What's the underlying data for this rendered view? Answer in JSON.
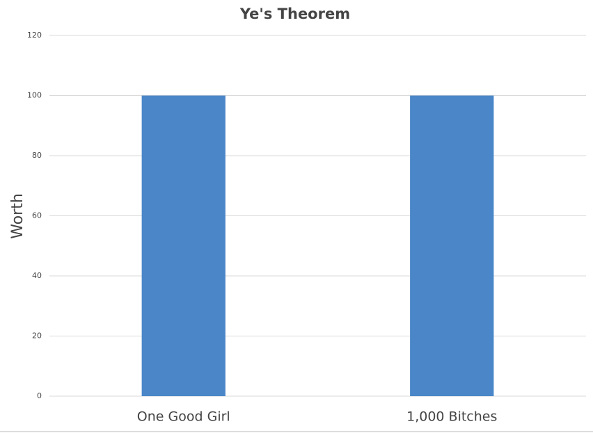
{
  "chart_data": {
    "type": "bar",
    "title": "Ye's Theorem",
    "y_label": "Worth",
    "categories": [
      "One Good Girl",
      "1,000 Bitches"
    ],
    "values": [
      100,
      100
    ],
    "color": "#4a86c8",
    "ylim": [
      0,
      120
    ],
    "yticks": [
      0,
      20,
      40,
      60,
      80,
      100,
      120
    ],
    "grid": true
  }
}
